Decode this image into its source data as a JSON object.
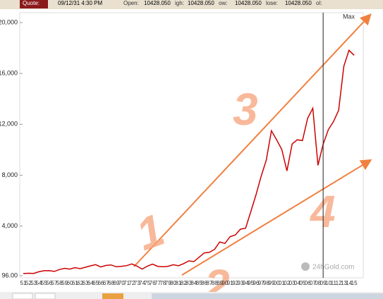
{
  "header": {
    "quote_label": "Quote:",
    "datetime": "09/12/31 4:30 PM",
    "fields": [
      {
        "label": "Open:",
        "value": "10428.050"
      },
      {
        "label": "igh:",
        "value": "10428.050"
      },
      {
        "label": "ow:",
        "value": "10428.050"
      },
      {
        "label": "lose:",
        "value": "10428.050"
      },
      {
        "label": "ol:"
      }
    ]
  },
  "chart_data": {
    "type": "line",
    "categories": [
      "51",
      "52",
      "53",
      "54",
      "55",
      "56",
      "57",
      "58",
      "59",
      "60",
      "61",
      "62",
      "63",
      "64",
      "65",
      "66",
      "67",
      "68",
      "69",
      "70",
      "71",
      "72",
      "73",
      "74",
      "75",
      "76",
      "77",
      "78",
      "79",
      "80",
      "81",
      "82",
      "83",
      "84",
      "85",
      "86",
      "87",
      "88",
      "89",
      "90",
      "91",
      "92",
      "93",
      "94",
      "95",
      "96",
      "97",
      "98",
      "99",
      "00",
      "01",
      "02",
      "03",
      "04",
      "05",
      "06",
      "07",
      "08",
      "09",
      "10",
      "11",
      "12",
      "13",
      "14",
      "15"
    ],
    "series": [
      {
        "color": "#cc0000",
        "values": [
          269,
          291,
          280,
          404,
          488,
          499,
          435,
          583,
          679,
          615,
          731,
          652,
          762,
          874,
          969,
          785,
          905,
          943,
          800,
          838,
          890,
          1020,
          850,
          616,
          852,
          1004,
          831,
          805,
          838,
          963,
          875,
          1046,
          1258,
          1211,
          1546,
          1895,
          1938,
          2168,
          2753,
          2633,
          3168,
          3301,
          3754,
          3834,
          5117,
          6448,
          7908,
          9181,
          11497,
          10787,
          10021,
          8341,
          10453,
          10783,
          10717,
          12463,
          13264,
          8776,
          10428,
          11577,
          12217,
          13104,
          16576,
          17823,
          17425
        ]
      }
    ],
    "ylim": [
      96,
      20000
    ],
    "yticks": [
      {
        "value": 20000,
        "label": "20,000"
      },
      {
        "value": 16000,
        "label": "16,000"
      },
      {
        "value": 12000,
        "label": "12,000"
      },
      {
        "value": 8000,
        "label": "8,000"
      },
      {
        "value": 4000,
        "label": "4,000"
      },
      {
        "value": 96,
        "label": "96.00"
      }
    ],
    "max_label": "Max",
    "watermark": "24hGold.com",
    "annotations": [
      "1",
      "2",
      "3",
      "4"
    ]
  }
}
